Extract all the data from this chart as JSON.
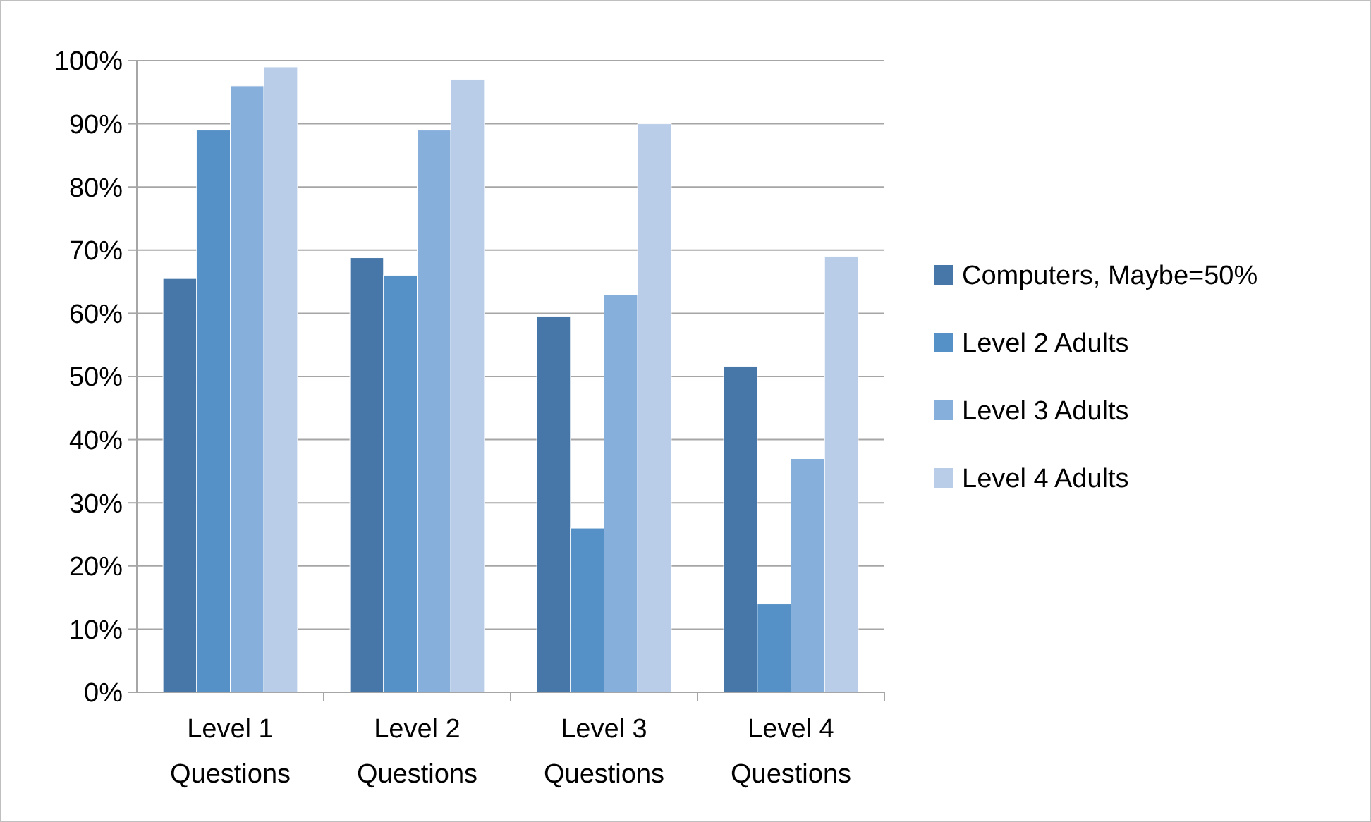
{
  "chart_data": {
    "type": "bar",
    "categories": [
      "Level 1 Questions",
      "Level 2 Questions",
      "Level 3 Questions",
      "Level 4 Questions"
    ],
    "series": [
      {
        "name": "Computers, Maybe=50%",
        "color": "#4677a8",
        "values": [
          65.5,
          68.8,
          59.5,
          51.6
        ]
      },
      {
        "name": "Level 2 Adults",
        "color": "#5590c6",
        "values": [
          89,
          66,
          26,
          14
        ]
      },
      {
        "name": "Level 3 Adults",
        "color": "#87afdc",
        "values": [
          96,
          89,
          63,
          37
        ]
      },
      {
        "name": "Level 4 Adults",
        "color": "#b9cde8",
        "values": [
          99,
          97,
          90,
          69
        ]
      }
    ],
    "ylim": [
      0,
      100
    ],
    "yticks": [
      {
        "value": 0,
        "label": "0%"
      },
      {
        "value": 10,
        "label": "10%"
      },
      {
        "value": 20,
        "label": "20%"
      },
      {
        "value": 30,
        "label": "30%"
      },
      {
        "value": 40,
        "label": "40%"
      },
      {
        "value": 50,
        "label": "50%"
      },
      {
        "value": 60,
        "label": "60%"
      },
      {
        "value": 70,
        "label": "70%"
      },
      {
        "value": 80,
        "label": "80%"
      },
      {
        "value": 90,
        "label": "90%"
      },
      {
        "value": 100,
        "label": "100%"
      }
    ],
    "grid": "y",
    "legend": "right"
  }
}
